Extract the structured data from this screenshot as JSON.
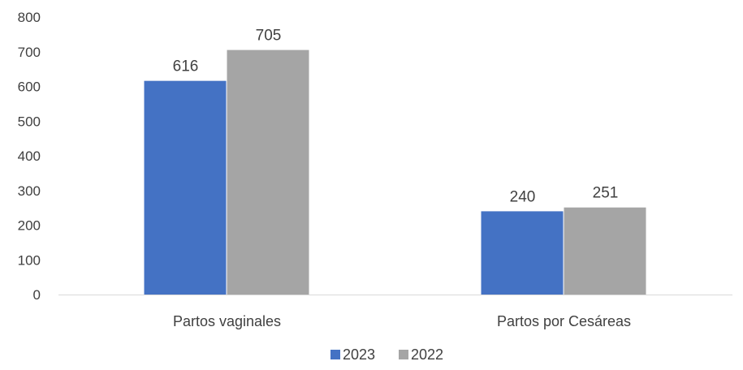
{
  "chart_data": {
    "type": "bar",
    "title": "",
    "xlabel": "",
    "ylabel": "",
    "categories": [
      "Partos vaginales",
      "Partos por Cesáreas"
    ],
    "series": [
      {
        "name": "2023",
        "values": [
          616,
          240
        ],
        "color": "#4472C4"
      },
      {
        "name": "2022",
        "values": [
          705,
          251
        ],
        "color": "#A5A5A5"
      }
    ],
    "ylim": [
      0,
      800
    ],
    "yticks": [
      0,
      100,
      200,
      300,
      400,
      500,
      600,
      700,
      800
    ],
    "grid": false,
    "legend_position": "bottom"
  }
}
